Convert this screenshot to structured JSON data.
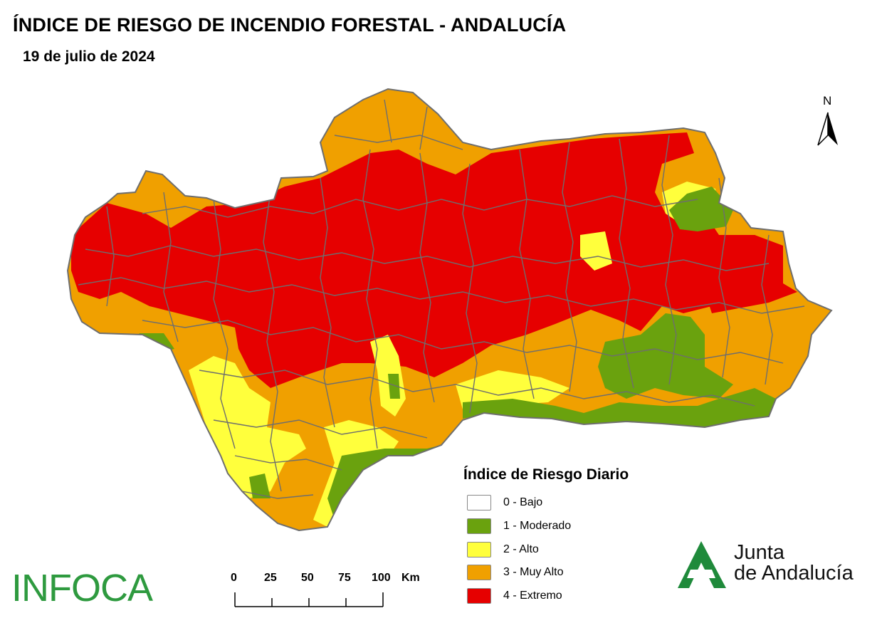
{
  "header": {
    "title": "ÍNDICE DE RIESGO DE INCENDIO FORESTAL - ANDALUCÍA",
    "date": "19 de julio de 2024"
  },
  "north_arrow": {
    "label": "N",
    "icon": "north-arrow-icon"
  },
  "legend": {
    "title": "Índice de Riesgo Diario",
    "items": [
      {
        "label": "0 - Bajo",
        "color": "#ffffff"
      },
      {
        "label": "1 - Moderado",
        "color": "#6aa20e"
      },
      {
        "label": "2 - Alto",
        "color": "#ffff3c"
      },
      {
        "label": "3 - Muy Alto",
        "color": "#f0a000"
      },
      {
        "label": "4 - Extremo",
        "color": "#e60000"
      }
    ]
  },
  "scale_bar": {
    "ticks": [
      "0",
      "25",
      "50",
      "75",
      "100"
    ],
    "unit": "Km"
  },
  "logos": {
    "infoca": "INFOCA",
    "junta_line1": "Junta",
    "junta_line2": "de Andalucía",
    "junta_color": "#1f8a3b"
  },
  "map": {
    "region": "Andalucía",
    "boundary_color": "#6e6e6e",
    "dominant_category": "4 - Extremo"
  }
}
